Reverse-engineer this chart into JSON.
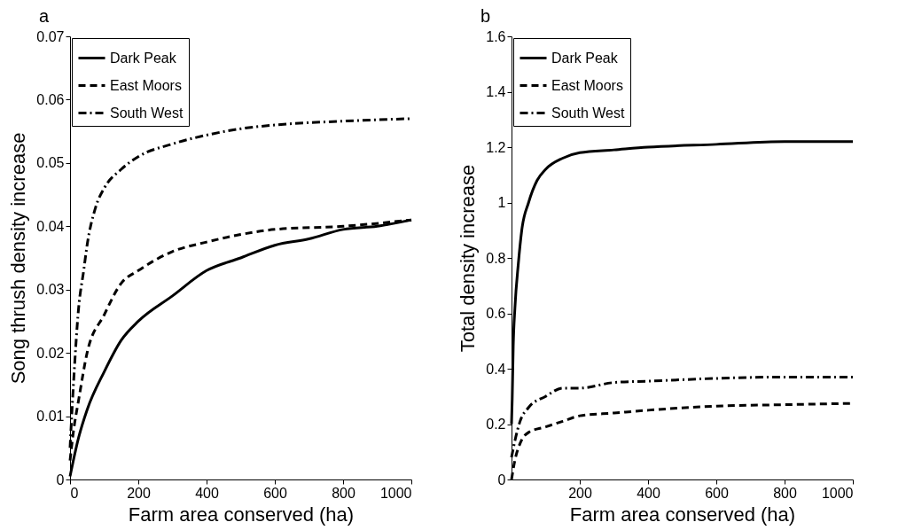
{
  "chart_data": [
    {
      "type": "line",
      "title": "a",
      "xlabel": "Farm area conserved (ha)",
      "ylabel": "Song thrush density increase",
      "xlim": [
        0,
        1000
      ],
      "xticks": [
        0,
        200,
        400,
        600,
        800,
        1000
      ],
      "ylim": [
        0,
        0.07
      ],
      "yticks": [
        0,
        0.01,
        0.02,
        0.03,
        0.04,
        0.05,
        0.06,
        0.07
      ],
      "grid": false,
      "legend": "top left",
      "series": [
        {
          "name": "Dark Peak",
          "color": "#000000",
          "line_style": "solid",
          "x": [
            0,
            25,
            50,
            100,
            150,
            200,
            300,
            400,
            500,
            600,
            700,
            800,
            900,
            1000
          ],
          "values": [
            0.0005,
            0.0066,
            0.011,
            0.017,
            0.022,
            0.025,
            0.029,
            0.033,
            0.035,
            0.037,
            0.038,
            0.0395,
            0.04,
            0.041
          ]
        },
        {
          "name": "East Moors",
          "color": "#000000",
          "line_style": "dashed",
          "x": [
            0,
            10,
            25,
            50,
            100,
            150,
            200,
            300,
            400,
            500,
            600,
            800,
            1000
          ],
          "values": [
            0.003,
            0.0076,
            0.0125,
            0.02,
            0.026,
            0.031,
            0.033,
            0.036,
            0.0375,
            0.0387,
            0.0395,
            0.04,
            0.041
          ]
        },
        {
          "name": "South West",
          "color": "#000000",
          "line_style": "dashdot",
          "x": [
            0,
            10,
            25,
            40,
            50,
            75,
            100,
            150,
            200,
            300,
            400,
            500,
            600,
            800,
            1000
          ],
          "values": [
            0.005,
            0.015,
            0.027,
            0.033,
            0.037,
            0.043,
            0.046,
            0.049,
            0.051,
            0.053,
            0.0544,
            0.0554,
            0.056,
            0.0566,
            0.057
          ]
        }
      ]
    },
    {
      "type": "line",
      "title": "b",
      "xlabel": "Farm area conserved (ha)",
      "ylabel": "Total density increase",
      "xlim": [
        0,
        1000
      ],
      "xticks": [
        200,
        400,
        600,
        800,
        1000
      ],
      "ylim": [
        0,
        1.6
      ],
      "yticks": [
        0,
        0.2,
        0.4,
        0.6,
        0.8,
        1,
        1.2,
        1.4,
        1.6
      ],
      "grid": false,
      "legend": "top left",
      "series": [
        {
          "name": "Dark Peak",
          "color": "#000000",
          "line_style": "solid",
          "x": [
            0,
            2,
            5,
            10,
            20,
            30,
            50,
            75,
            100,
            150,
            200,
            300,
            400,
            600,
            800,
            1000
          ],
          "values": [
            0.2,
            0.29,
            0.48,
            0.62,
            0.78,
            0.9,
            1,
            1.08,
            1.12,
            1.16,
            1.18,
            1.19,
            1.2,
            1.21,
            1.22,
            1.22
          ]
        },
        {
          "name": "East Moors",
          "color": "#000000",
          "line_style": "dashed",
          "x": [
            0,
            10,
            25,
            50,
            100,
            150,
            200,
            300,
            400,
            600,
            800,
            1000
          ],
          "values": [
            0,
            0.07,
            0.13,
            0.17,
            0.19,
            0.21,
            0.23,
            0.24,
            0.25,
            0.265,
            0.27,
            0.275
          ]
        },
        {
          "name": "South West",
          "color": "#000000",
          "line_style": "dashdot",
          "x": [
            0,
            10,
            25,
            50,
            100,
            150,
            200,
            300,
            400,
            600,
            800,
            1000
          ],
          "values": [
            0.08,
            0.14,
            0.21,
            0.26,
            0.3,
            0.33,
            0.33,
            0.35,
            0.355,
            0.365,
            0.37,
            0.37
          ]
        }
      ]
    }
  ]
}
